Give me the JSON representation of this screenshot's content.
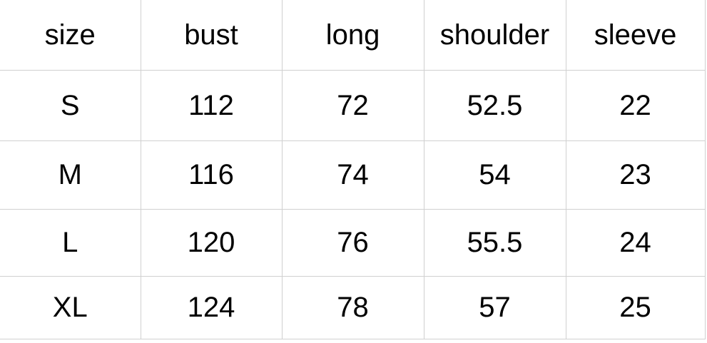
{
  "chart_data": {
    "type": "table",
    "columns": [
      "size",
      "bust",
      "long",
      "shoulder",
      "sleeve"
    ],
    "rows": [
      [
        "S",
        112,
        72,
        52.5,
        22
      ],
      [
        "M",
        116,
        74,
        54,
        23
      ],
      [
        "L",
        120,
        76,
        55.5,
        24
      ],
      [
        "XL",
        124,
        78,
        57,
        25
      ]
    ]
  },
  "colors": {
    "grid_line": "#d0d0d0",
    "text": "#000000",
    "background": "#ffffff"
  }
}
